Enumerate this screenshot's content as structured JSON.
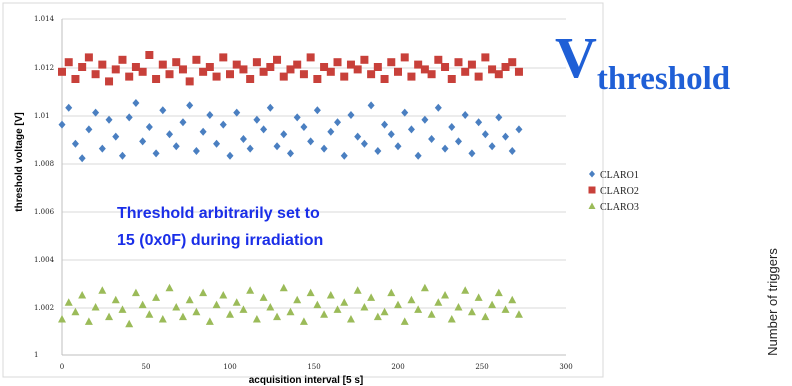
{
  "annotation": {
    "line1": "Threshold arbitrarily set to",
    "line2": "15 (0x0F) during irradiation"
  },
  "overlay_title": {
    "main": "V",
    "subscript": "threshold"
  },
  "side_label": "Number of triggers",
  "colors": {
    "CLARO1": "#4a7fc1",
    "CLARO2": "#c8403a",
    "CLARO3": "#9bbb59",
    "annotation": "#1a2ee8",
    "title": "#1f5fd6"
  },
  "chart_data": {
    "type": "scatter",
    "xlabel": "acquisition interval [5 s]",
    "ylabel": "threshold voltage [V]",
    "xlim": [
      0,
      300
    ],
    "ylim": [
      1,
      1.014
    ],
    "x_ticks": [
      "0",
      "50",
      "100",
      "150",
      "200",
      "250",
      "300"
    ],
    "y_ticks": [
      "1",
      "1.002",
      "1.004",
      "1.006",
      "1.008",
      "1.01",
      "1.012",
      "1.014"
    ],
    "grid": "horizontal",
    "legend": "right",
    "x": [
      0,
      4,
      8,
      12,
      16,
      20,
      24,
      28,
      32,
      36,
      40,
      44,
      48,
      52,
      56,
      60,
      64,
      68,
      72,
      76,
      80,
      84,
      88,
      92,
      96,
      100,
      104,
      108,
      112,
      116,
      120,
      124,
      128,
      132,
      136,
      140,
      144,
      148,
      152,
      156,
      160,
      164,
      168,
      172,
      176,
      180,
      184,
      188,
      192,
      196,
      200,
      204,
      208,
      212,
      216,
      220,
      224,
      228,
      232,
      236,
      240,
      244,
      248,
      252,
      256,
      260,
      264,
      268,
      272
    ],
    "series": [
      {
        "name": "CLARO1",
        "marker": "diamond",
        "color": "#4a7fc1",
        "values": [
          1.0096,
          1.0103,
          1.0088,
          1.0082,
          1.0094,
          1.0101,
          1.0086,
          1.0098,
          1.0091,
          1.0083,
          1.0099,
          1.0105,
          1.0089,
          1.0095,
          1.0084,
          1.0102,
          1.0092,
          1.0087,
          1.0097,
          1.0104,
          1.0085,
          1.0093,
          1.01,
          1.0088,
          1.0096,
          1.0083,
          1.0101,
          1.009,
          1.0086,
          1.0098,
          1.0094,
          1.0103,
          1.0087,
          1.0092,
          1.0084,
          1.0099,
          1.0095,
          1.0089,
          1.0102,
          1.0086,
          1.0093,
          1.0097,
          1.0083,
          1.01,
          1.0091,
          1.0088,
          1.0104,
          1.0085,
          1.0096,
          1.0092,
          1.0087,
          1.0101,
          1.0094,
          1.0083,
          1.0098,
          1.009,
          1.0103,
          1.0086,
          1.0095,
          1.0089,
          1.01,
          1.0084,
          1.0097,
          1.0092,
          1.0087,
          1.0099,
          1.0091,
          1.0085,
          1.0094
        ]
      },
      {
        "name": "CLARO2",
        "marker": "square",
        "color": "#c8403a",
        "values": [
          1.0118,
          1.0122,
          1.0115,
          1.012,
          1.0124,
          1.0117,
          1.0121,
          1.0114,
          1.0119,
          1.0123,
          1.0116,
          1.012,
          1.0118,
          1.0125,
          1.0115,
          1.0121,
          1.0117,
          1.0122,
          1.0119,
          1.0114,
          1.0123,
          1.0118,
          1.012,
          1.0116,
          1.0124,
          1.0117,
          1.0121,
          1.0119,
          1.0115,
          1.0122,
          1.0118,
          1.012,
          1.0123,
          1.0116,
          1.0119,
          1.0121,
          1.0117,
          1.0124,
          1.0115,
          1.012,
          1.0118,
          1.0122,
          1.0116,
          1.0121,
          1.0119,
          1.0123,
          1.0117,
          1.012,
          1.0115,
          1.0122,
          1.0118,
          1.0124,
          1.0116,
          1.0121,
          1.0119,
          1.0117,
          1.0123,
          1.012,
          1.0115,
          1.0122,
          1.0118,
          1.0121,
          1.0116,
          1.0124,
          1.0119,
          1.0117,
          1.012,
          1.0122,
          1.0118
        ]
      },
      {
        "name": "CLARO3",
        "marker": "triangle",
        "color": "#9bbb59",
        "values": [
          1.0015,
          1.0022,
          1.0018,
          1.0025,
          1.0014,
          1.002,
          1.0027,
          1.0016,
          1.0023,
          1.0019,
          1.0013,
          1.0026,
          1.0021,
          1.0017,
          1.0024,
          1.0015,
          1.0028,
          1.002,
          1.0016,
          1.0023,
          1.0018,
          1.0026,
          1.0014,
          1.0021,
          1.0025,
          1.0017,
          1.0022,
          1.0019,
          1.0027,
          1.0015,
          1.0024,
          1.002,
          1.0016,
          1.0028,
          1.0018,
          1.0023,
          1.0014,
          1.0026,
          1.0021,
          1.0017,
          1.0025,
          1.0019,
          1.0022,
          1.0015,
          1.0027,
          1.002,
          1.0024,
          1.0016,
          1.0018,
          1.0026,
          1.0021,
          1.0014,
          1.0023,
          1.0019,
          1.0028,
          1.0017,
          1.0022,
          1.0025,
          1.0015,
          1.002,
          1.0027,
          1.0018,
          1.0024,
          1.0016,
          1.0021,
          1.0026,
          1.0019,
          1.0023,
          1.0017
        ]
      }
    ]
  }
}
